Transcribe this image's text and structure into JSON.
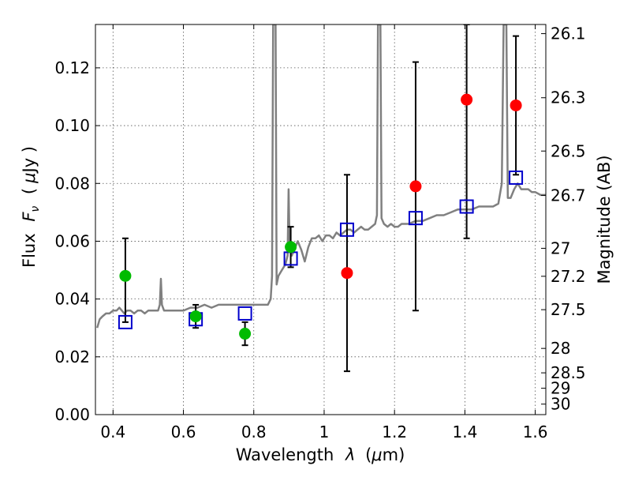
{
  "chart_data": {
    "type": "scatter",
    "xlabel_text": "Wavelength",
    "xlabel_symbol": "λ",
    "xlabel_unit_open": "(",
    "xlabel_unit_mu": "μ",
    "xlabel_unit_rest": "m)",
    "ylabel_text": "Flux",
    "ylabel_symbol": "F",
    "ylabel_subscript": "ν",
    "ylabel_unit_open": "(",
    "ylabel_unit_mu": "μ",
    "ylabel_unit_rest": "Jy )",
    "y2label": "Magnitude (AB)",
    "xlim": [
      0.35,
      1.63
    ],
    "ylim": [
      0.0,
      0.135
    ],
    "x_ticks": [
      {
        "value": 0.4,
        "label": "0.4"
      },
      {
        "value": 0.6,
        "label": "0.6"
      },
      {
        "value": 0.8,
        "label": "0.8"
      },
      {
        "value": 1.0,
        "label": "1"
      },
      {
        "value": 1.2,
        "label": "1.2"
      },
      {
        "value": 1.4,
        "label": "1.4"
      },
      {
        "value": 1.6,
        "label": "1.6"
      }
    ],
    "y_ticks": [
      {
        "value": 0.0,
        "label": "0.00"
      },
      {
        "value": 0.02,
        "label": "0.02"
      },
      {
        "value": 0.04,
        "label": "0.04"
      },
      {
        "value": 0.06,
        "label": "0.06"
      },
      {
        "value": 0.08,
        "label": "0.08"
      },
      {
        "value": 0.1,
        "label": "0.10"
      },
      {
        "value": 0.12,
        "label": "0.12"
      }
    ],
    "y2_ticks": [
      {
        "mag": 26.1,
        "label": "26.1"
      },
      {
        "mag": 26.3,
        "label": "26.3"
      },
      {
        "mag": 26.5,
        "label": "26.5"
      },
      {
        "mag": 26.7,
        "label": "26.7"
      },
      {
        "mag": 27.0,
        "label": "27"
      },
      {
        "mag": 27.2,
        "label": "27.2"
      },
      {
        "mag": 27.5,
        "label": "27.5"
      },
      {
        "mag": 28.0,
        "label": "28"
      },
      {
        "mag": 28.5,
        "label": "28.5"
      },
      {
        "mag": 29.0,
        "label": "29"
      },
      {
        "mag": 30.0,
        "label": "30"
      }
    ],
    "grid": true,
    "colors": {
      "model": "#808080",
      "green": "#00bb00",
      "red": "#ff0000",
      "square": "#0000cc",
      "errorbar": "#000000",
      "grid": "#555555"
    },
    "model_spectrum": [
      [
        0.355,
        0.03
      ],
      [
        0.362,
        0.033
      ],
      [
        0.37,
        0.034
      ],
      [
        0.38,
        0.035
      ],
      [
        0.39,
        0.035
      ],
      [
        0.4,
        0.036
      ],
      [
        0.41,
        0.036
      ],
      [
        0.418,
        0.037
      ],
      [
        0.425,
        0.036
      ],
      [
        0.432,
        0.035
      ],
      [
        0.44,
        0.036
      ],
      [
        0.45,
        0.036
      ],
      [
        0.46,
        0.035
      ],
      [
        0.47,
        0.036
      ],
      [
        0.48,
        0.036
      ],
      [
        0.49,
        0.035
      ],
      [
        0.5,
        0.036
      ],
      [
        0.51,
        0.036
      ],
      [
        0.52,
        0.036
      ],
      [
        0.528,
        0.036
      ],
      [
        0.533,
        0.038
      ],
      [
        0.536,
        0.047
      ],
      [
        0.539,
        0.038
      ],
      [
        0.545,
        0.036
      ],
      [
        0.56,
        0.036
      ],
      [
        0.58,
        0.036
      ],
      [
        0.6,
        0.036
      ],
      [
        0.62,
        0.037
      ],
      [
        0.64,
        0.037
      ],
      [
        0.66,
        0.038
      ],
      [
        0.68,
        0.037
      ],
      [
        0.7,
        0.038
      ],
      [
        0.72,
        0.038
      ],
      [
        0.74,
        0.038
      ],
      [
        0.76,
        0.038
      ],
      [
        0.78,
        0.038
      ],
      [
        0.8,
        0.038
      ],
      [
        0.82,
        0.038
      ],
      [
        0.84,
        0.038
      ],
      [
        0.848,
        0.04
      ],
      [
        0.852,
        0.048
      ],
      [
        0.855,
        0.135
      ],
      [
        0.862,
        0.135
      ],
      [
        0.865,
        0.045
      ],
      [
        0.87,
        0.048
      ],
      [
        0.88,
        0.05
      ],
      [
        0.89,
        0.052
      ],
      [
        0.896,
        0.055
      ],
      [
        0.899,
        0.078
      ],
      [
        0.902,
        0.058
      ],
      [
        0.908,
        0.055
      ],
      [
        0.915,
        0.057
      ],
      [
        0.925,
        0.06
      ],
      [
        0.935,
        0.057
      ],
      [
        0.945,
        0.053
      ],
      [
        0.955,
        0.058
      ],
      [
        0.965,
        0.061
      ],
      [
        0.975,
        0.061
      ],
      [
        0.985,
        0.062
      ],
      [
        0.995,
        0.06
      ],
      [
        1.005,
        0.062
      ],
      [
        1.015,
        0.062
      ],
      [
        1.025,
        0.061
      ],
      [
        1.035,
        0.063
      ],
      [
        1.045,
        0.062
      ],
      [
        1.055,
        0.063
      ],
      [
        1.065,
        0.064
      ],
      [
        1.075,
        0.064
      ],
      [
        1.085,
        0.063
      ],
      [
        1.095,
        0.064
      ],
      [
        1.105,
        0.065
      ],
      [
        1.115,
        0.064
      ],
      [
        1.125,
        0.064
      ],
      [
        1.135,
        0.065
      ],
      [
        1.145,
        0.066
      ],
      [
        1.15,
        0.069
      ],
      [
        1.153,
        0.135
      ],
      [
        1.16,
        0.135
      ],
      [
        1.163,
        0.068
      ],
      [
        1.17,
        0.066
      ],
      [
        1.18,
        0.065
      ],
      [
        1.19,
        0.066
      ],
      [
        1.2,
        0.065
      ],
      [
        1.21,
        0.065
      ],
      [
        1.22,
        0.066
      ],
      [
        1.24,
        0.066
      ],
      [
        1.26,
        0.067
      ],
      [
        1.28,
        0.067
      ],
      [
        1.3,
        0.068
      ],
      [
        1.32,
        0.069
      ],
      [
        1.34,
        0.069
      ],
      [
        1.36,
        0.07
      ],
      [
        1.38,
        0.071
      ],
      [
        1.4,
        0.071
      ],
      [
        1.42,
        0.071
      ],
      [
        1.44,
        0.072
      ],
      [
        1.46,
        0.072
      ],
      [
        1.48,
        0.072
      ],
      [
        1.495,
        0.073
      ],
      [
        1.505,
        0.08
      ],
      [
        1.51,
        0.135
      ],
      [
        1.518,
        0.135
      ],
      [
        1.522,
        0.075
      ],
      [
        1.53,
        0.075
      ],
      [
        1.54,
        0.078
      ],
      [
        1.55,
        0.08
      ],
      [
        1.56,
        0.078
      ],
      [
        1.57,
        0.078
      ],
      [
        1.58,
        0.078
      ],
      [
        1.59,
        0.077
      ],
      [
        1.6,
        0.077
      ],
      [
        1.615,
        0.076
      ],
      [
        1.63,
        0.076
      ]
    ],
    "green_points": [
      {
        "x": 0.435,
        "y": 0.048
      },
      {
        "x": 0.635,
        "y": 0.034
      },
      {
        "x": 0.775,
        "y": 0.028
      },
      {
        "x": 0.905,
        "y": 0.058
      }
    ],
    "red_points": [
      {
        "x": 1.065,
        "y": 0.049
      },
      {
        "x": 1.26,
        "y": 0.079
      },
      {
        "x": 1.405,
        "y": 0.109
      },
      {
        "x": 1.545,
        "y": 0.107
      }
    ],
    "model_squares": [
      {
        "x": 0.435,
        "y": 0.032
      },
      {
        "x": 0.635,
        "y": 0.033
      },
      {
        "x": 0.775,
        "y": 0.035
      },
      {
        "x": 0.905,
        "y": 0.054
      },
      {
        "x": 1.065,
        "y": 0.064
      },
      {
        "x": 1.26,
        "y": 0.068
      },
      {
        "x": 1.405,
        "y": 0.072
      },
      {
        "x": 1.545,
        "y": 0.082
      }
    ],
    "error_bars": [
      {
        "x": 0.435,
        "low": 0.032,
        "high": 0.061
      },
      {
        "x": 0.635,
        "low": 0.03,
        "high": 0.038
      },
      {
        "x": 0.775,
        "low": 0.024,
        "high": 0.032
      },
      {
        "x": 0.905,
        "low": 0.051,
        "high": 0.065
      },
      {
        "x": 1.065,
        "low": 0.015,
        "high": 0.083
      },
      {
        "x": 1.26,
        "low": 0.036,
        "high": 0.122
      },
      {
        "x": 1.405,
        "low": 0.061,
        "high": 0.135
      },
      {
        "x": 1.545,
        "low": 0.083,
        "high": 0.131
      }
    ]
  }
}
